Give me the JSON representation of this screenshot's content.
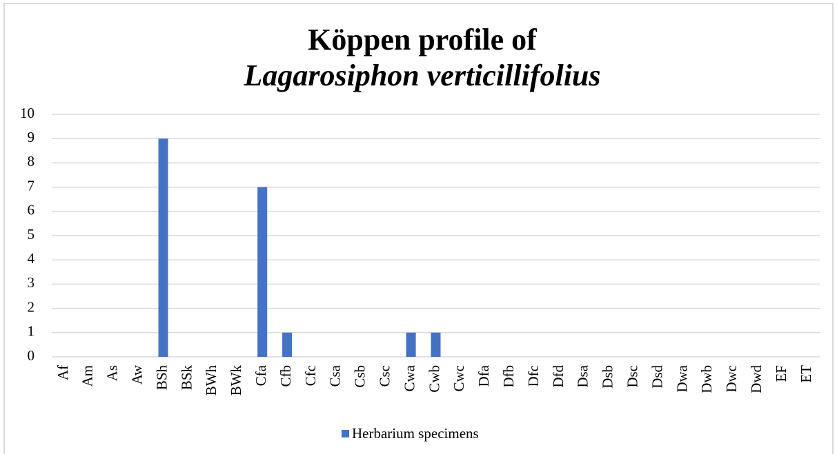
{
  "chart_data": {
    "type": "bar",
    "title": [
      "Köppen profile of",
      "Lagarosiphon verticillifolius"
    ],
    "categories": [
      "Af",
      "Am",
      "As",
      "Aw",
      "BSh",
      "BSk",
      "BWh",
      "BWk",
      "Cfa",
      "Cfb",
      "Cfc",
      "Csa",
      "Csb",
      "Csc",
      "Cwa",
      "Cwb",
      "Cwc",
      "Dfa",
      "Dfb",
      "Dfc",
      "Dfd",
      "Dsa",
      "Dsb",
      "Dsc",
      "Dsd",
      "Dwa",
      "Dwb",
      "Dwc",
      "Dwd",
      "EF",
      "ET"
    ],
    "series": [
      {
        "name": "Herbarium specimens",
        "color": "#4472c4",
        "values": [
          0,
          0,
          0,
          0,
          9,
          0,
          0,
          0,
          7,
          1,
          0,
          0,
          0,
          0,
          1,
          1,
          0,
          0,
          0,
          0,
          0,
          0,
          0,
          0,
          0,
          0,
          0,
          0,
          0,
          0,
          0
        ]
      }
    ],
    "ylim": [
      0,
      10
    ],
    "yticks": [
      0,
      1,
      2,
      3,
      4,
      5,
      6,
      7,
      8,
      9,
      10
    ],
    "grid": true,
    "legend": "bottom"
  }
}
